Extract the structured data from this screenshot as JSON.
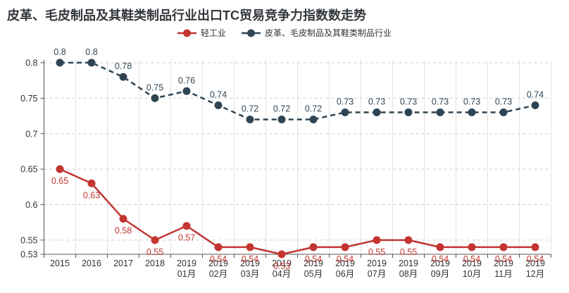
{
  "title": "皮革、毛皮制品及其鞋类制品行业出口TC贸易竞争力指数数走势",
  "colors": {
    "title": "#33373c",
    "light_industry": "#c23531",
    "leather_industry": "#2f4554",
    "axis_line": "#555555",
    "tick_label": "#333333",
    "grid_vertical": "#e3e3e3",
    "grid_horizontal": "#cccccc",
    "background": "#ffffff"
  },
  "legend": [
    {
      "label": "轻工业",
      "color": "#c23531"
    },
    {
      "label": "皮革、毛皮制品及其鞋类制品行业",
      "color": "#2f4554"
    }
  ],
  "chart_data": {
    "type": "line",
    "title": "皮革、毛皮制品及其鞋类制品行业出口TC贸易竞争力指数数走势",
    "legend_position": "top",
    "grid": true,
    "categories": [
      "2015",
      "2016",
      "2017",
      "2018",
      "2019 01月",
      "2019 02月",
      "2019 03月",
      "2019 04月",
      "2019 05月",
      "2019 06月",
      "2019 07月",
      "2019 08月",
      "2019 09月",
      "2019 10月",
      "2019 11月",
      "2019 12月"
    ],
    "x_tick_lines": [
      [
        "2015"
      ],
      [
        "2016"
      ],
      [
        "2017"
      ],
      [
        "2018"
      ],
      [
        "2019",
        "01月"
      ],
      [
        "2019",
        "02月"
      ],
      [
        "2019",
        "03月"
      ],
      [
        "2019",
        "04月"
      ],
      [
        "2019",
        "05月"
      ],
      [
        "2019",
        "06月"
      ],
      [
        "2019",
        "07月"
      ],
      [
        "2019",
        "08月"
      ],
      [
        "2019",
        "09月"
      ],
      [
        "2019",
        "10月"
      ],
      [
        "2019",
        "11月"
      ],
      [
        "2019",
        "12月"
      ]
    ],
    "series": [
      {
        "name": "轻工业",
        "color": "#c23531",
        "line_style": "solid",
        "label_position": "bottom",
        "values": [
          0.65,
          0.63,
          0.58,
          0.55,
          0.57,
          0.54,
          0.54,
          0.53,
          0.54,
          0.54,
          0.55,
          0.55,
          0.54,
          0.54,
          0.54,
          0.54
        ]
      },
      {
        "name": "皮革、毛皮制品及其鞋类制品行业",
        "color": "#2f4554",
        "line_style": "dashed",
        "label_position": "top",
        "values": [
          0.8,
          0.8,
          0.78,
          0.75,
          0.76,
          0.74,
          0.72,
          0.72,
          0.72,
          0.73,
          0.73,
          0.73,
          0.73,
          0.73,
          0.73,
          0.74
        ]
      }
    ],
    "yticks": [
      0.53,
      0.55,
      0.6,
      0.65,
      0.7,
      0.75,
      0.8
    ],
    "ylim": [
      0.53,
      0.804
    ],
    "xlabel": "",
    "ylabel": ""
  }
}
